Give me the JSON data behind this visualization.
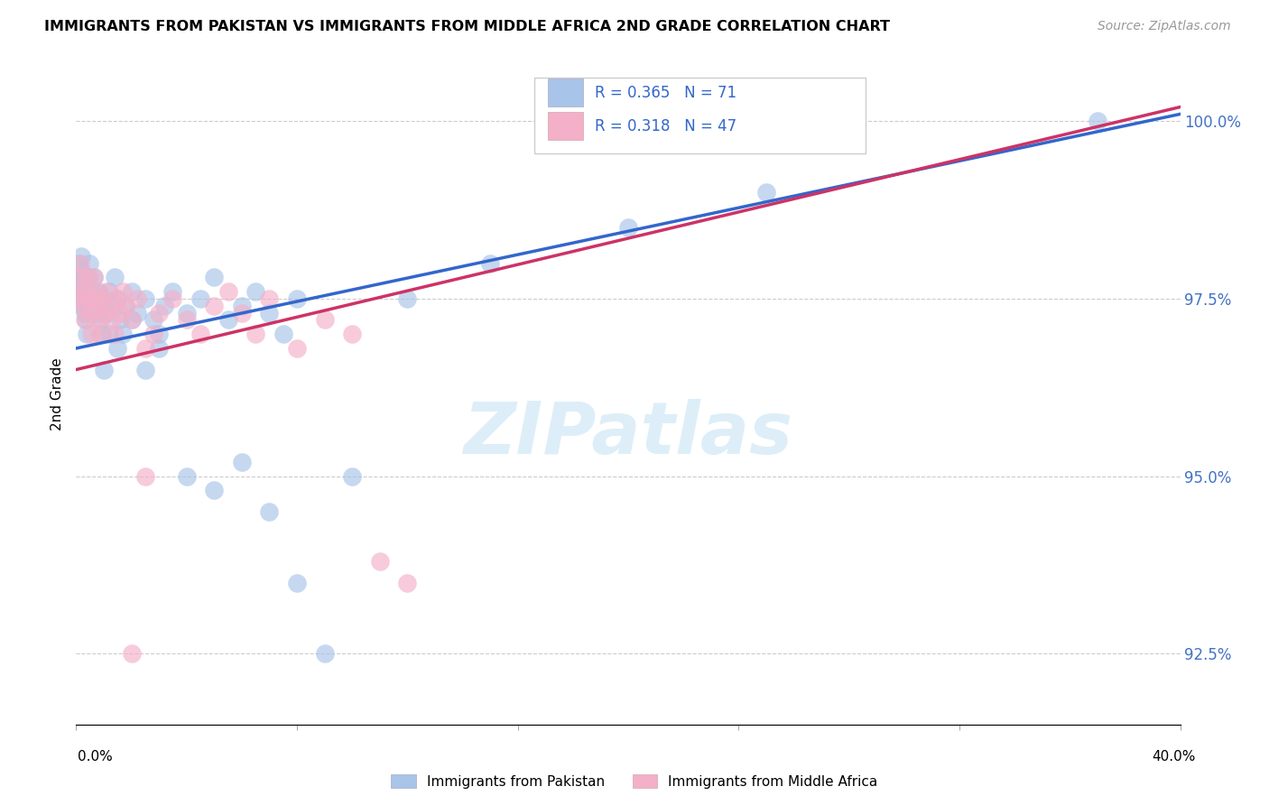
{
  "title": "IMMIGRANTS FROM PAKISTAN VS IMMIGRANTS FROM MIDDLE AFRICA 2ND GRADE CORRELATION CHART",
  "source": "Source: ZipAtlas.com",
  "ylabel": "2nd Grade",
  "xmin": 0.0,
  "xmax": 40.0,
  "ymin": 91.5,
  "ymax": 100.8,
  "ytick_vals": [
    92.5,
    95.0,
    97.5,
    100.0
  ],
  "blue_R": 0.365,
  "blue_N": 71,
  "pink_R": 0.318,
  "pink_N": 47,
  "blue_color": "#a8c4e8",
  "pink_color": "#f4b0c8",
  "blue_line_color": "#3366cc",
  "pink_line_color": "#cc3366",
  "legend_label_blue": "Immigrants from Pakistan",
  "legend_label_pink": "Immigrants from Middle Africa",
  "watermark": "ZIPatlas",
  "watermark_color": "#ddeef8",
  "blue_scatter_x": [
    0.05,
    0.08,
    0.1,
    0.12,
    0.15,
    0.18,
    0.2,
    0.22,
    0.25,
    0.28,
    0.3,
    0.32,
    0.35,
    0.38,
    0.4,
    0.42,
    0.45,
    0.48,
    0.5,
    0.55,
    0.6,
    0.65,
    0.7,
    0.75,
    0.8,
    0.85,
    0.9,
    0.95,
    1.0,
    1.1,
    1.2,
    1.3,
    1.4,
    1.5,
    1.6,
    1.7,
    1.8,
    2.0,
    2.2,
    2.5,
    2.8,
    3.0,
    3.2,
    3.5,
    4.0,
    4.5,
    5.0,
    5.5,
    6.0,
    6.5,
    7.0,
    7.5,
    8.0,
    1.0,
    1.2,
    1.5,
    2.0,
    2.5,
    3.0,
    4.0,
    5.0,
    6.0,
    7.0,
    8.0,
    9.0,
    10.0,
    12.0,
    15.0,
    20.0,
    25.0,
    37.0
  ],
  "blue_scatter_y": [
    97.8,
    98.0,
    97.5,
    97.6,
    97.9,
    98.1,
    97.7,
    97.4,
    97.6,
    97.8,
    97.3,
    97.5,
    97.2,
    97.0,
    97.4,
    97.6,
    97.8,
    98.0,
    97.5,
    97.4,
    97.6,
    97.8,
    97.5,
    97.3,
    97.6,
    97.4,
    97.2,
    97.0,
    97.5,
    97.3,
    97.6,
    97.4,
    97.8,
    97.5,
    97.2,
    97.0,
    97.4,
    97.6,
    97.3,
    97.5,
    97.2,
    97.0,
    97.4,
    97.6,
    97.3,
    97.5,
    97.8,
    97.2,
    97.4,
    97.6,
    97.3,
    97.0,
    97.5,
    96.5,
    97.0,
    96.8,
    97.2,
    96.5,
    96.8,
    95.0,
    94.8,
    95.2,
    94.5,
    93.5,
    92.5,
    95.0,
    97.5,
    98.0,
    98.5,
    99.0,
    100.0
  ],
  "pink_scatter_x": [
    0.05,
    0.1,
    0.15,
    0.2,
    0.25,
    0.3,
    0.35,
    0.4,
    0.45,
    0.5,
    0.55,
    0.6,
    0.65,
    0.7,
    0.75,
    0.8,
    0.85,
    0.9,
    1.0,
    1.1,
    1.2,
    1.3,
    1.4,
    1.5,
    1.6,
    1.7,
    1.8,
    2.0,
    2.2,
    2.5,
    2.8,
    3.0,
    3.5,
    4.0,
    4.5,
    5.0,
    5.5,
    6.0,
    6.5,
    7.0,
    8.0,
    9.0,
    10.0,
    11.0,
    12.0,
    2.0,
    2.5
  ],
  "pink_scatter_y": [
    97.5,
    97.8,
    98.0,
    97.6,
    97.4,
    97.2,
    97.6,
    97.8,
    97.5,
    97.3,
    97.0,
    97.5,
    97.8,
    97.6,
    97.4,
    97.2,
    97.0,
    97.5,
    97.3,
    97.6,
    97.4,
    97.2,
    97.0,
    97.5,
    97.3,
    97.6,
    97.4,
    97.2,
    97.5,
    96.8,
    97.0,
    97.3,
    97.5,
    97.2,
    97.0,
    97.4,
    97.6,
    97.3,
    97.0,
    97.5,
    96.8,
    97.2,
    97.0,
    93.8,
    93.5,
    92.5,
    95.0
  ],
  "blue_line_x0": 0.0,
  "blue_line_x1": 40.0,
  "blue_line_y0": 96.8,
  "blue_line_y1": 100.1,
  "pink_line_x0": 0.0,
  "pink_line_x1": 40.0,
  "pink_line_y0": 96.5,
  "pink_line_y1": 100.2
}
